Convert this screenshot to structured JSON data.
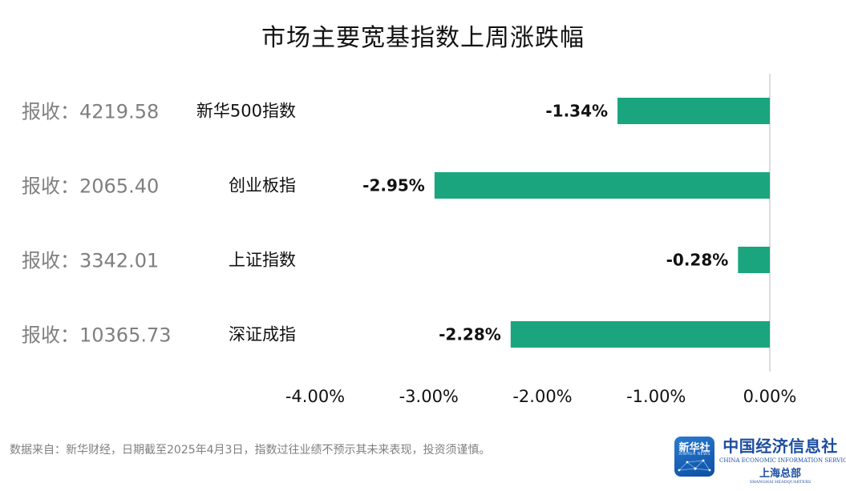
{
  "title": "市场主要宽基指数上周涨跌幅",
  "chart_data": {
    "type": "bar",
    "orientation": "horizontal",
    "categories": [
      "新华500指数",
      "创业板指",
      "上证指数",
      "深证成指"
    ],
    "values": [
      -1.34,
      -2.95,
      -0.28,
      -2.28
    ],
    "value_labels": [
      "-1.34%",
      "-2.95%",
      "-0.28%",
      "-2.28%"
    ],
    "close_labels": [
      "报收：4219.58",
      "报收：2065.40",
      "报收：3342.01",
      "报收：10365.73"
    ],
    "xlim": [
      -4,
      0
    ],
    "xticks": [
      -4,
      -3,
      -2,
      -1,
      0
    ],
    "xtick_labels": [
      "-4.00%",
      "-3.00%",
      "-2.00%",
      "-1.00%",
      "0.00%"
    ],
    "bar_color": "#1aa57f",
    "grid": false,
    "legend": "none"
  },
  "footnote": "数据来自：新华财经，日期截至2025年4月3日，指数过往业绩不预示其未来表现，投资须谨慎。",
  "logos": {
    "xinhua": {
      "name": "新华社",
      "sub": "XINHUA NEWS"
    },
    "ceis": {
      "cn": "中国经济信息社",
      "en": "CHINA ECONOMIC INFORMATION SERVICE",
      "sh": "上海总部",
      "sh_en": "SHANGHAI HEADQUARTERS"
    }
  }
}
